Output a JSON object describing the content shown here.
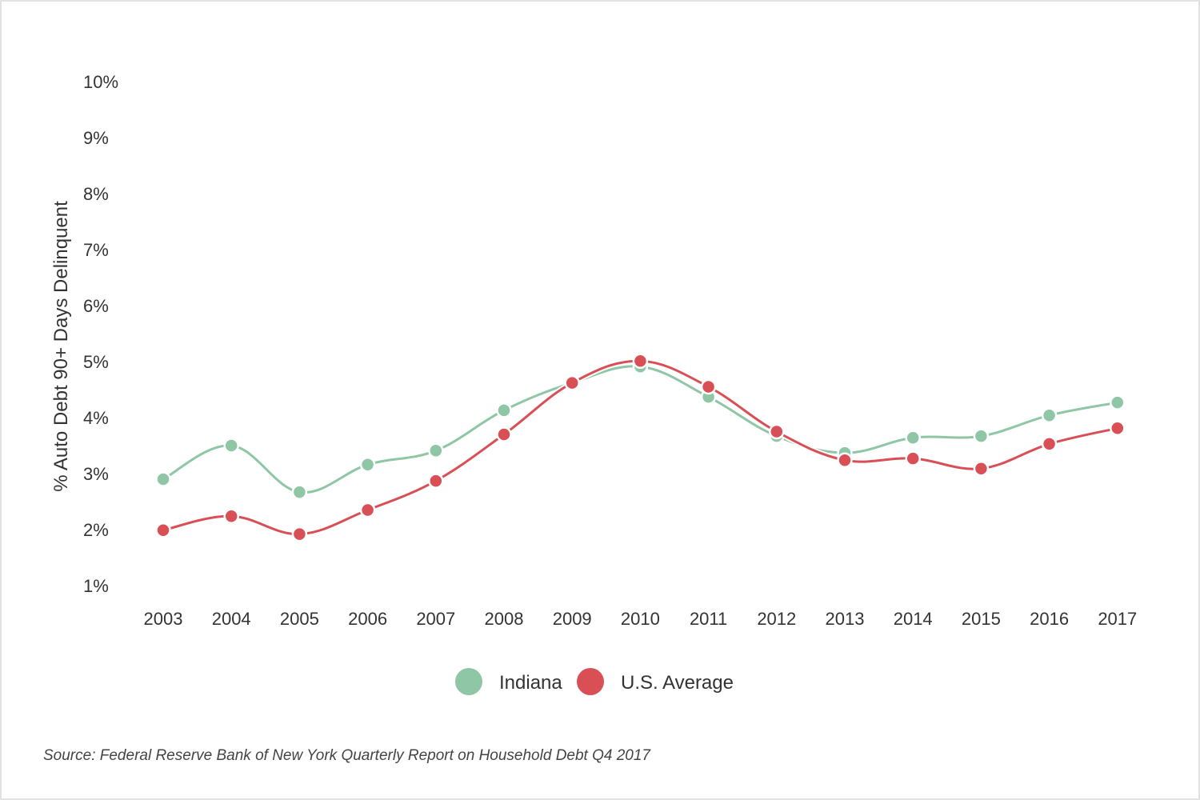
{
  "chart_data": {
    "type": "line",
    "ylabel": "% Auto Debt 90+ Days Delinquent",
    "xlabel": "",
    "categories": [
      "2003",
      "2004",
      "2005",
      "2006",
      "2007",
      "2008",
      "2009",
      "2010",
      "2011",
      "2012",
      "2013",
      "2014",
      "2015",
      "2016",
      "2017"
    ],
    "y_ticks": [
      "1%",
      "2%",
      "3%",
      "4%",
      "5%",
      "6%",
      "7%",
      "8%",
      "9%",
      "10%"
    ],
    "ylim": [
      1,
      10
    ],
    "grid": false,
    "legend_position": "bottom-center",
    "series": [
      {
        "name": "Indiana",
        "color": "#8fc6a5",
        "values": [
          2.9,
          3.5,
          2.67,
          3.16,
          3.41,
          4.13,
          4.62,
          4.91,
          4.37,
          3.67,
          3.37,
          3.64,
          3.67,
          4.04,
          4.27
        ]
      },
      {
        "name": "U.S. Average",
        "color": "#d94f56",
        "values": [
          1.99,
          2.24,
          1.92,
          2.35,
          2.87,
          3.7,
          4.62,
          5.01,
          4.55,
          3.75,
          3.24,
          3.27,
          3.09,
          3.53,
          3.81
        ]
      }
    ],
    "source": "Source: Federal Reserve Bank of New York Quarterly Report on Household Debt Q4 2017"
  }
}
